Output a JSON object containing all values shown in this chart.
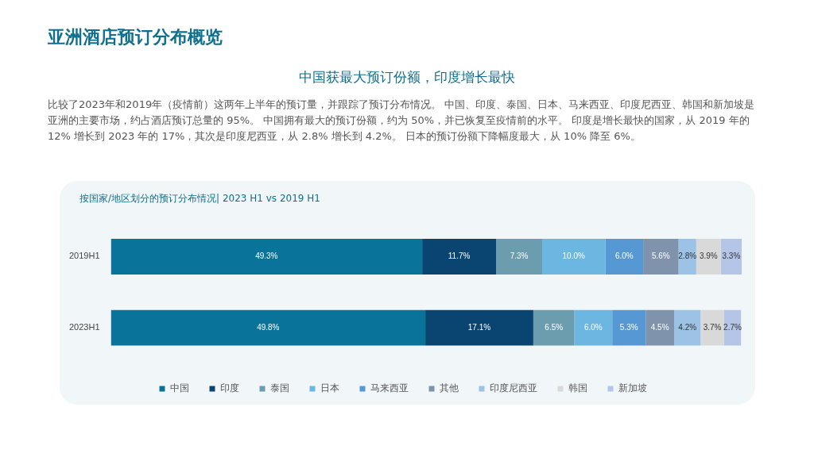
{
  "chart_data": {
    "type": "bar",
    "orientation": "horizontal",
    "stacked": true,
    "title": "亚洲酒店预订分布概览",
    "subtitle": "中国获最大预订份额，印度增长最快",
    "annotations": [
      "比较了2023年和2019年（疫情前）这两年上半年的预订量，并跟踪了预订分布情况。 中国、印度、泰国、日本、马来西亚、印度尼西亚、韩国和新加坡是亚洲的主要市场，约占酒店预订总量的 95%。 中国拥有最大的预订份额，约为 50%，并已恢复至疫情前的水平。 印度是增长最快的国家，从 2019 年的 12% 增长到 2023 年的 17%，其次是印度尼西亚，从 2.8% 增长到 4.2%。 日本的预订份额下降幅度最大，从 10% 降至 6%。",
      "按国家/地区划分的预订分布情况| 2023 H1 vs 2019 H1"
    ],
    "categories": [
      "2019H1",
      "2023H1"
    ],
    "series": [
      {
        "name": "中国",
        "color": "#0a7399",
        "values": [
          49.3,
          49.8
        ],
        "value_labels": [
          "49.3%",
          "49.8%"
        ]
      },
      {
        "name": "印度",
        "color": "#0a4572",
        "values": [
          11.7,
          17.1
        ],
        "value_labels": [
          "11.7%",
          "17.1%"
        ]
      },
      {
        "name": "泰国",
        "color": "#6b9daf",
        "values": [
          7.3,
          6.5
        ],
        "value_labels": [
          "7.3%",
          "6.5%"
        ]
      },
      {
        "name": "日本",
        "color": "#6bb7e2",
        "values": [
          10.0,
          6.0
        ],
        "value_labels": [
          "10.0%",
          "6.0%"
        ]
      },
      {
        "name": "马来西亚",
        "color": "#5698d4",
        "values": [
          6.0,
          5.3
        ],
        "value_labels": [
          "6.0%",
          "5.3%"
        ]
      },
      {
        "name": "其他",
        "color": "#7f93ad",
        "values": [
          5.6,
          4.5
        ],
        "value_labels": [
          "5.6%",
          "4.5%"
        ]
      },
      {
        "name": "印度尼西亚",
        "color": "#9cc3e6",
        "values": [
          2.8,
          4.2
        ],
        "value_labels": [
          "2.8%",
          "4.2%"
        ]
      },
      {
        "name": "韩国",
        "color": "#d9d9d9",
        "values": [
          3.9,
          3.7
        ],
        "value_labels": [
          "3.9%",
          "3.7%"
        ]
      },
      {
        "name": "新加坡",
        "color": "#b4c5e8",
        "values": [
          3.3,
          2.7
        ],
        "value_labels": [
          "3.3%",
          "2.7%"
        ]
      }
    ],
    "grid": false,
    "legend": "bottom",
    "tick_labels": "y"
  }
}
